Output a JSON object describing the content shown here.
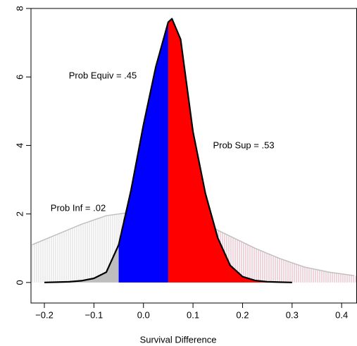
{
  "chart_data": {
    "type": "density",
    "x_label": "Survival Difference",
    "x": [
      -0.2,
      -0.175,
      -0.15,
      -0.125,
      -0.1,
      -0.075,
      -0.05,
      -0.025,
      0,
      0.025,
      0.05,
      0.0575,
      0.075,
      0.1,
      0.125,
      0.15,
      0.175,
      0.2,
      0.225,
      0.25,
      0.275,
      0.3
    ],
    "values": [
      0,
      0.01,
      0.02,
      0.05,
      0.12,
      0.3,
      1.1,
      2.7,
      4.6,
      6.3,
      7.6,
      7.7,
      7.1,
      4.4,
      2.6,
      1.3,
      0.5,
      0.17,
      0.06,
      0.02,
      0.01,
      0
    ],
    "color": "#000000",
    "bounds": [
      -0.05,
      0.05
    ],
    "region_colors": [
      "#bebebe",
      "#0000ff",
      "#ff0000"
    ],
    "prior": {
      "x": [
        -0.225,
        -0.175,
        -0.125,
        -0.075,
        -0.025,
        0.025,
        0.075,
        0.125,
        0.175,
        0.225,
        0.275,
        0.325,
        0.375,
        0.425
      ],
      "values": [
        1.1,
        1.4,
        1.7,
        1.95,
        2.05,
        2.05,
        1.95,
        1.7,
        1.35,
        1.0,
        0.7,
        0.45,
        0.3,
        0.2
      ],
      "color": "#c0c0c0",
      "hatch_colors": [
        "#c8c8c8",
        "#d2869c"
      ]
    },
    "annotations": [
      "Prob Equiv = .45",
      "Prob Sup = .53",
      "Prob Inf = .02"
    ],
    "xlim": [
      -0.227,
      0.431
    ],
    "ylim": [
      -0.6,
      8.0
    ],
    "xticks": [
      {
        "value": -0.2,
        "label": "−0.2"
      },
      {
        "value": -0.1,
        "label": "−0.1"
      },
      {
        "value": 0,
        "label": "0.0"
      },
      0.1,
      0.2,
      0.3,
      0.4
    ],
    "yticks": [
      0,
      2,
      4,
      6,
      8
    ]
  }
}
